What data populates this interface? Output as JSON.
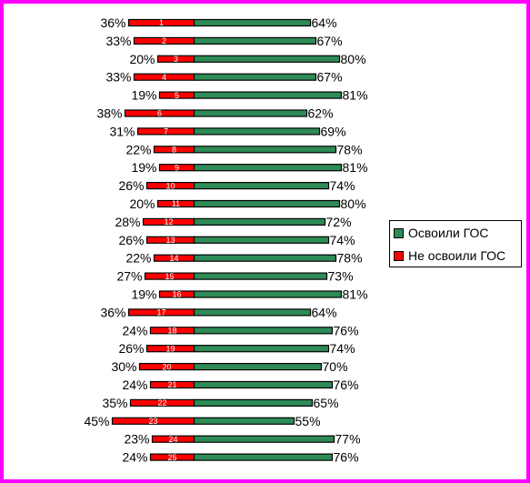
{
  "chart_data": {
    "type": "bar",
    "orientation": "horizontal-diverging",
    "categories": [
      "1",
      "2",
      "3",
      "4",
      "5",
      "6",
      "7",
      "8",
      "9",
      "10",
      "11",
      "12",
      "13",
      "14",
      "15",
      "16",
      "17",
      "18",
      "19",
      "20",
      "21",
      "22",
      "23",
      "24",
      "25"
    ],
    "series": [
      {
        "name": "Освоили ГОС",
        "color": "#2e8b57",
        "values": [
          64,
          67,
          80,
          67,
          81,
          62,
          69,
          78,
          81,
          74,
          80,
          72,
          74,
          78,
          73,
          81,
          64,
          76,
          74,
          70,
          76,
          65,
          55,
          77,
          76
        ]
      },
      {
        "name": "Не освоили ГОС",
        "color": "#ff0000",
        "values": [
          36,
          33,
          20,
          33,
          19,
          38,
          31,
          22,
          19,
          26,
          20,
          28,
          26,
          22,
          27,
          19,
          36,
          24,
          26,
          30,
          24,
          35,
          45,
          23,
          24
        ]
      }
    ],
    "value_suffix": "%",
    "legend": "right",
    "grid": false
  },
  "style": {
    "frame_color": "#ff00ff"
  }
}
